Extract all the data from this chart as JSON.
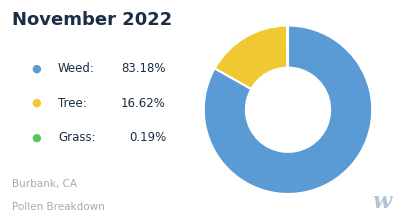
{
  "title": "November 2022",
  "subtitle_line1": "Burbank, CA",
  "subtitle_line2": "Pollen Breakdown",
  "slices": [
    83.18,
    16.62,
    0.19
  ],
  "labels": [
    "Weed",
    "Tree",
    "Grass"
  ],
  "percentages": [
    "83.18%",
    "16.62%",
    "0.19%"
  ],
  "colors": [
    "#5B9BD5",
    "#F0C832",
    "#5DC45D"
  ],
  "background_color": "#ffffff",
  "title_color": "#1a2e44",
  "legend_text_color": "#1a2e44",
  "subtitle_color": "#aaaaaa",
  "watermark_color": "#b0c4d8",
  "donut_width": 0.5
}
